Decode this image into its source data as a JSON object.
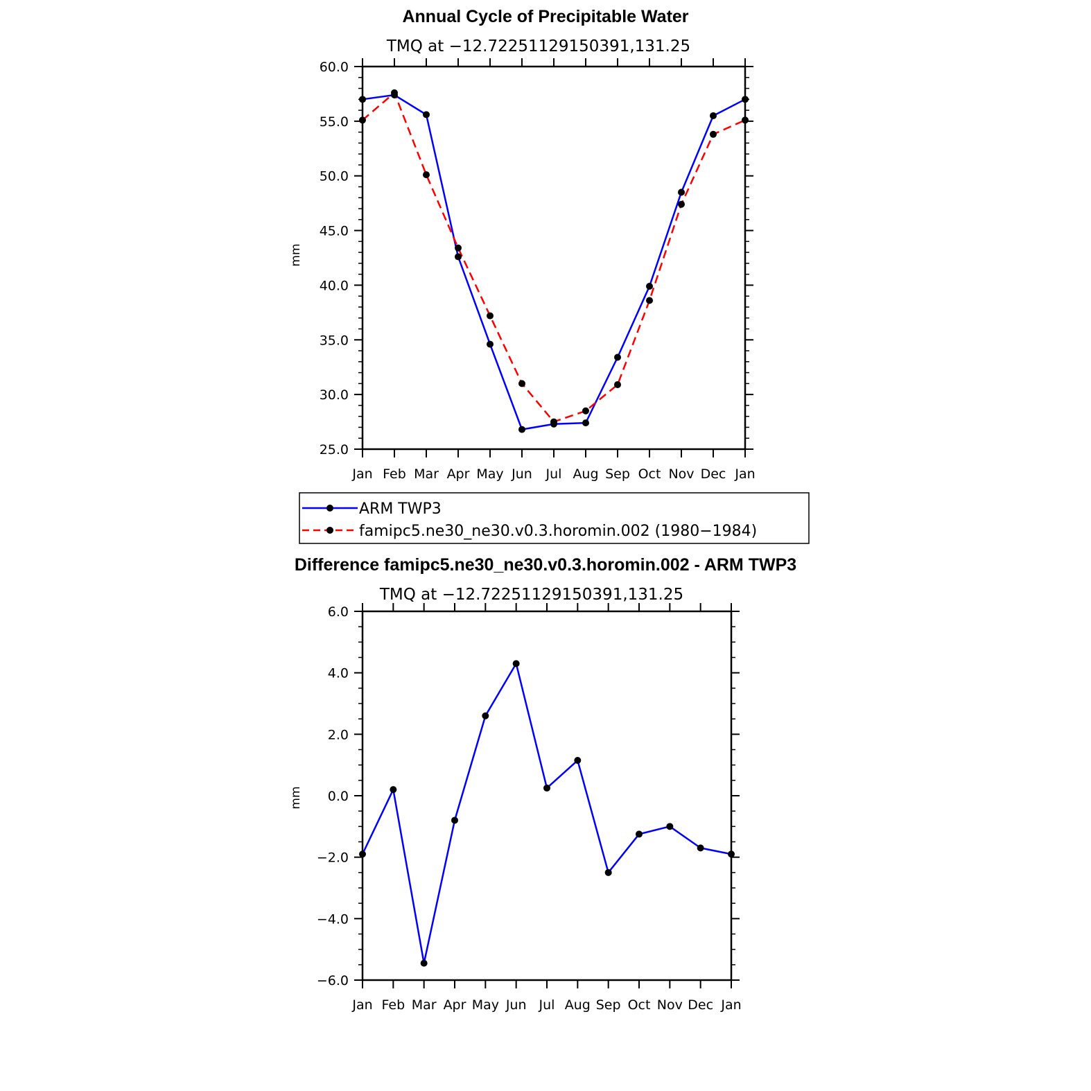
{
  "chart_data": [
    {
      "type": "line",
      "title": "Annual Cycle of Precipitable Water",
      "subtitle": "TMQ at −12.72251129150391,131.25",
      "xlabel": "",
      "ylabel": "mm",
      "categories": [
        "Jan",
        "Feb",
        "Mar",
        "Apr",
        "May",
        "Jun",
        "Jul",
        "Aug",
        "Sep",
        "Oct",
        "Nov",
        "Dec",
        "Jan"
      ],
      "ylim": [
        25.0,
        60.0
      ],
      "yticks": [
        "25.0",
        "30.0",
        "35.0",
        "40.0",
        "45.0",
        "50.0",
        "55.0",
        "60.0"
      ],
      "series": [
        {
          "name": "ARM TWP3",
          "color": "#0000ff",
          "dash": "solid",
          "values": [
            57.0,
            57.4,
            55.6,
            42.6,
            34.6,
            26.8,
            27.3,
            27.4,
            33.4,
            39.9,
            48.5,
            55.5,
            57.0
          ]
        },
        {
          "name": "famipc5.ne30_ne30.v0.3.horomin.002 (1980−1984)",
          "color": "#ff0000",
          "dash": "dashed",
          "values": [
            55.1,
            57.6,
            50.1,
            43.4,
            37.2,
            31.0,
            27.5,
            28.5,
            30.9,
            38.6,
            47.4,
            53.8,
            55.1
          ]
        }
      ],
      "legend": "below"
    },
    {
      "type": "line",
      "title": "Difference famipc5.ne30_ne30.v0.3.horomin.002 - ARM TWP3",
      "subtitle": "TMQ at −12.72251129150391,131.25",
      "xlabel": "",
      "ylabel": "mm",
      "categories": [
        "Jan",
        "Feb",
        "Mar",
        "Apr",
        "May",
        "Jun",
        "Jul",
        "Aug",
        "Sep",
        "Oct",
        "Nov",
        "Dec",
        "Jan"
      ],
      "ylim": [
        -6.0,
        6.0
      ],
      "yticks": [
        "−6.0",
        "−4.0",
        "−2.0",
        "0.0",
        "2.0",
        "4.0",
        "6.0"
      ],
      "series": [
        {
          "name": "Difference",
          "color": "#0000ff",
          "dash": "solid",
          "values": [
            -1.9,
            0.2,
            -5.45,
            -0.8,
            2.6,
            4.3,
            0.25,
            1.15,
            -2.5,
            -1.25,
            -1.0,
            -1.7,
            -1.9
          ]
        }
      ]
    }
  ]
}
